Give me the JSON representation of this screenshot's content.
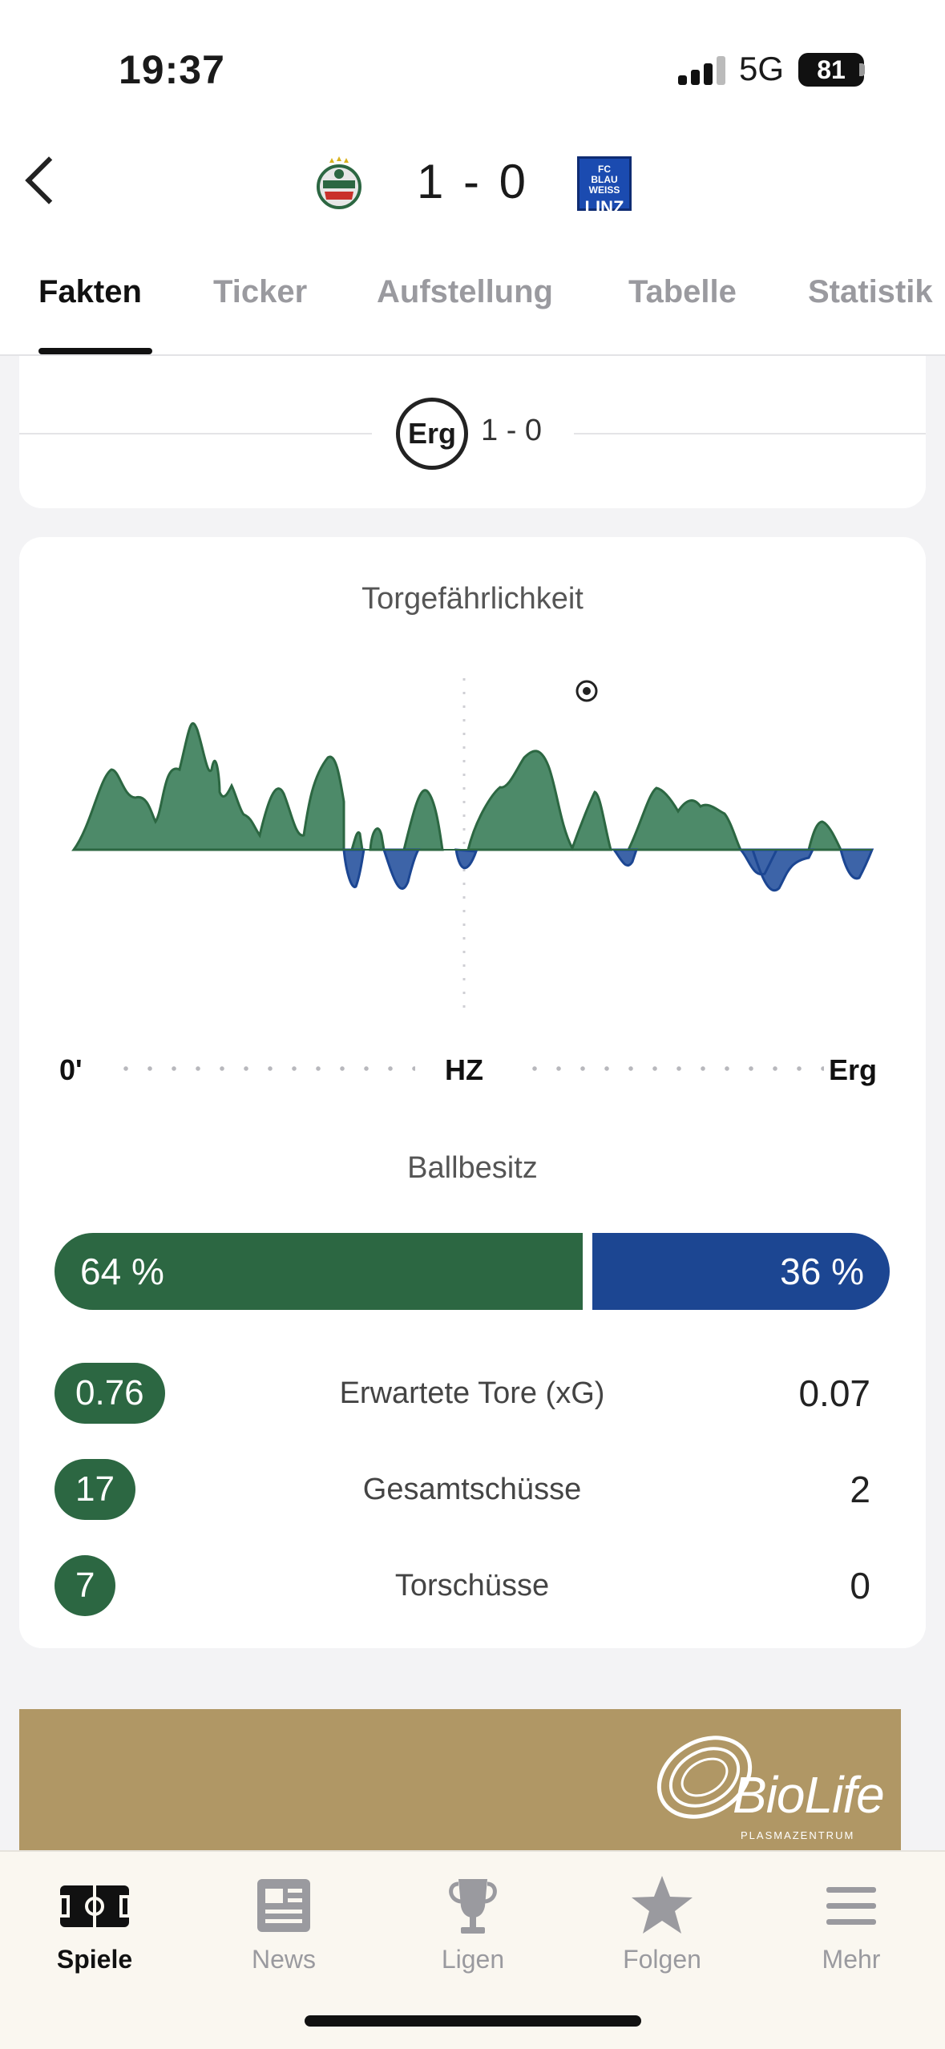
{
  "status_bar": {
    "time": "19:37",
    "network": "5G",
    "battery": "81"
  },
  "match": {
    "score": "1 - 0"
  },
  "tabs": [
    {
      "label": "Fakten",
      "active": true
    },
    {
      "label": "Ticker",
      "active": false
    },
    {
      "label": "Aufstellung",
      "active": false
    },
    {
      "label": "Tabelle",
      "active": false
    },
    {
      "label": "Statistik",
      "active": false
    }
  ],
  "result_card": {
    "badge": "Erg",
    "score": "1 - 0"
  },
  "chart": {
    "title": "Torgefährlichkeit",
    "labels": {
      "start": "0'",
      "half": "HZ",
      "end": "Erg"
    },
    "colors": {
      "home": "#2c6742",
      "away": "#1c4692"
    }
  },
  "possession": {
    "title": "Ballbesitz",
    "home": "64 %",
    "away": "36 %",
    "home_value": 64,
    "away_value": 36
  },
  "stats": [
    {
      "label": "Erwartete Tore (xG)",
      "home": "0.76",
      "away": "0.07"
    },
    {
      "label": "Gesamtschüsse",
      "home": "17",
      "away": "2"
    },
    {
      "label": "Torschüsse",
      "home": "7",
      "away": "0"
    }
  ],
  "ad": {
    "brand": "BioLife",
    "tagline": "PLASMAZENTRUM"
  },
  "bottom_nav": [
    {
      "label": "Spiele",
      "icon": "pitch-icon",
      "active": true
    },
    {
      "label": "News",
      "icon": "news-icon",
      "active": false
    },
    {
      "label": "Ligen",
      "icon": "trophy-icon",
      "active": false
    },
    {
      "label": "Folgen",
      "icon": "star-icon",
      "active": false
    },
    {
      "label": "Mehr",
      "icon": "menu-icon",
      "active": false
    }
  ]
}
